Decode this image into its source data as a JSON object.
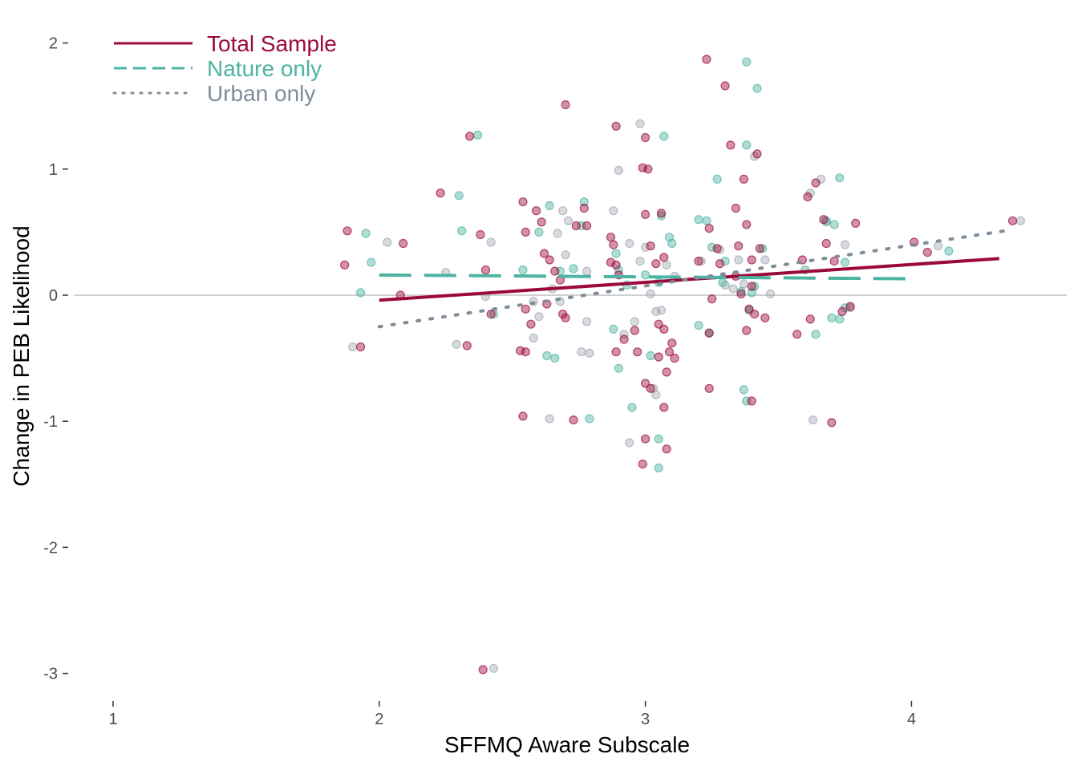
{
  "chart_data": {
    "type": "scatter",
    "xlabel": "SFFMQ Aware Subscale",
    "ylabel": "Change in PEB Likelihood",
    "xlim": [
      0.9,
      4.6
    ],
    "ylim": [
      -3.2,
      2.1
    ],
    "x_ticks": [
      1,
      2,
      3,
      4
    ],
    "y_ticks": [
      2,
      1,
      0,
      -1,
      -2,
      -3
    ],
    "x_tick_labels": [
      "1",
      "2",
      "3",
      "4"
    ],
    "y_tick_labels": [
      "2",
      "1",
      "0",
      "-1",
      "-2",
      "-3"
    ],
    "reference_line_y": 0,
    "grid": false,
    "legend_position": "top-left",
    "colors": {
      "total": "#9b0a3b",
      "nature": "#4db3a2",
      "urban": "#7f8c99",
      "reference": "#d0d0d0"
    },
    "legend": [
      {
        "label": "Total Sample",
        "style": "solid",
        "color": "#9b0a3b"
      },
      {
        "label": "Nature only",
        "style": "dashed",
        "color": "#4db3a2"
      },
      {
        "label": "Urban only",
        "style": "dotted",
        "color": "#7f8c99"
      }
    ],
    "series": [
      {
        "name": "Total Sample",
        "style": "solid",
        "color": "#9b0a3b",
        "fit": {
          "x": [
            2.0,
            4.33
          ],
          "y": [
            -0.04,
            0.29
          ]
        },
        "points": [
          [
            1.88,
            0.51
          ],
          [
            1.87,
            0.24
          ],
          [
            1.93,
            -0.41
          ],
          [
            2.09,
            0.41
          ],
          [
            2.08,
            0.0
          ],
          [
            2.23,
            0.81
          ],
          [
            2.34,
            1.26
          ],
          [
            2.38,
            0.48
          ],
          [
            2.4,
            0.2
          ],
          [
            2.42,
            -0.15
          ],
          [
            2.33,
            -0.4
          ],
          [
            2.39,
            -2.97
          ],
          [
            2.54,
            0.74
          ],
          [
            2.59,
            0.67
          ],
          [
            2.55,
            0.5
          ],
          [
            2.61,
            0.58
          ],
          [
            2.62,
            0.33
          ],
          [
            2.64,
            0.28
          ],
          [
            2.66,
            0.19
          ],
          [
            2.68,
            0.12
          ],
          [
            2.55,
            -0.11
          ],
          [
            2.57,
            -0.23
          ],
          [
            2.53,
            -0.44
          ],
          [
            2.55,
            -0.45
          ],
          [
            2.63,
            -0.07
          ],
          [
            2.69,
            -0.15
          ],
          [
            2.7,
            -0.18
          ],
          [
            2.74,
            0.55
          ],
          [
            2.77,
            0.69
          ],
          [
            2.78,
            0.55
          ],
          [
            2.7,
            1.51
          ],
          [
            2.73,
            -0.99
          ],
          [
            2.54,
            -0.96
          ],
          [
            2.89,
            1.34
          ],
          [
            2.87,
            0.46
          ],
          [
            2.88,
            0.4
          ],
          [
            2.87,
            0.26
          ],
          [
            2.89,
            0.24
          ],
          [
            2.9,
            0.16
          ],
          [
            2.92,
            -0.35
          ],
          [
            2.89,
            -0.45
          ],
          [
            2.96,
            -0.28
          ],
          [
            2.97,
            -0.45
          ],
          [
            2.99,
            1.01
          ],
          [
            3.01,
            1.0
          ],
          [
            3.0,
            1.25
          ],
          [
            3.0,
            0.64
          ],
          [
            3.02,
            0.39
          ],
          [
            3.06,
            0.65
          ],
          [
            3.07,
            0.3
          ],
          [
            3.04,
            0.25
          ],
          [
            3.05,
            -0.23
          ],
          [
            3.07,
            -0.27
          ],
          [
            3.1,
            -0.38
          ],
          [
            3.05,
            -0.49
          ],
          [
            3.09,
            -0.45
          ],
          [
            3.11,
            -0.5
          ],
          [
            3.02,
            -0.74
          ],
          [
            3.0,
            -0.7
          ],
          [
            3.08,
            -0.61
          ],
          [
            3.07,
            -0.89
          ],
          [
            3.0,
            -1.14
          ],
          [
            3.08,
            -1.22
          ],
          [
            2.99,
            -1.34
          ],
          [
            3.23,
            1.87
          ],
          [
            3.3,
            1.66
          ],
          [
            3.32,
            1.19
          ],
          [
            3.42,
            1.12
          ],
          [
            3.37,
            0.92
          ],
          [
            3.34,
            0.69
          ],
          [
            3.38,
            0.56
          ],
          [
            3.24,
            0.53
          ],
          [
            3.2,
            0.27
          ],
          [
            3.27,
            0.37
          ],
          [
            3.28,
            0.25
          ],
          [
            3.35,
            0.39
          ],
          [
            3.4,
            0.28
          ],
          [
            3.34,
            0.15
          ],
          [
            3.36,
            0.01
          ],
          [
            3.4,
            0.07
          ],
          [
            3.43,
            0.37
          ],
          [
            3.39,
            -0.11
          ],
          [
            3.41,
            -0.15
          ],
          [
            3.38,
            -0.28
          ],
          [
            3.45,
            -0.18
          ],
          [
            3.24,
            -0.3
          ],
          [
            3.24,
            -0.74
          ],
          [
            3.4,
            -0.84
          ],
          [
            3.25,
            -0.03
          ],
          [
            3.61,
            0.78
          ],
          [
            3.64,
            0.89
          ],
          [
            3.67,
            0.6
          ],
          [
            3.68,
            0.41
          ],
          [
            3.59,
            0.28
          ],
          [
            3.57,
            -0.31
          ],
          [
            3.62,
            -0.19
          ],
          [
            3.71,
            0.27
          ],
          [
            3.74,
            -0.13
          ],
          [
            3.77,
            -0.09
          ],
          [
            3.79,
            0.57
          ],
          [
            3.7,
            -1.01
          ],
          [
            4.01,
            0.42
          ],
          [
            4.06,
            0.34
          ],
          [
            4.38,
            0.59
          ]
        ]
      },
      {
        "name": "Nature only",
        "style": "dashed",
        "color": "#4db3a2",
        "fit": {
          "x": [
            2.0,
            4.0
          ],
          "y": [
            0.16,
            0.13
          ]
        },
        "points": [
          [
            1.95,
            0.49
          ],
          [
            1.97,
            0.26
          ],
          [
            1.93,
            0.02
          ],
          [
            2.3,
            0.79
          ],
          [
            2.31,
            0.51
          ],
          [
            2.37,
            1.27
          ],
          [
            2.43,
            -0.15
          ],
          [
            2.54,
            0.2
          ],
          [
            2.6,
            0.5
          ],
          [
            2.64,
            0.71
          ],
          [
            2.68,
            0.19
          ],
          [
            2.63,
            -0.48
          ],
          [
            2.66,
            -0.5
          ],
          [
            2.73,
            0.21
          ],
          [
            2.77,
            0.74
          ],
          [
            2.76,
            0.55
          ],
          [
            2.79,
            -0.98
          ],
          [
            2.89,
            0.33
          ],
          [
            2.9,
            0.2
          ],
          [
            2.88,
            -0.27
          ],
          [
            2.9,
            -0.58
          ],
          [
            2.93,
            0.08
          ],
          [
            2.95,
            -0.89
          ],
          [
            3.0,
            0.16
          ],
          [
            3.02,
            -0.48
          ],
          [
            3.06,
            0.63
          ],
          [
            3.07,
            1.26
          ],
          [
            3.05,
            0.1
          ],
          [
            3.09,
            0.46
          ],
          [
            3.1,
            0.41
          ],
          [
            3.05,
            -1.14
          ],
          [
            3.05,
            -1.37
          ],
          [
            3.2,
            0.6
          ],
          [
            3.23,
            0.59
          ],
          [
            3.27,
            0.92
          ],
          [
            3.24,
            -0.3
          ],
          [
            3.2,
            -0.24
          ],
          [
            3.25,
            0.38
          ],
          [
            3.3,
            0.27
          ],
          [
            3.29,
            0.1
          ],
          [
            3.36,
            0.03
          ],
          [
            3.38,
            1.85
          ],
          [
            3.42,
            1.64
          ],
          [
            3.38,
            1.19
          ],
          [
            3.37,
            -0.75
          ],
          [
            3.38,
            -0.84
          ],
          [
            3.44,
            0.37
          ],
          [
            3.41,
            0.07
          ],
          [
            3.4,
            0.02
          ],
          [
            3.39,
            -0.12
          ],
          [
            3.6,
            0.2
          ],
          [
            3.68,
            0.59
          ],
          [
            3.71,
            0.56
          ],
          [
            3.73,
            0.93
          ],
          [
            3.64,
            -0.31
          ],
          [
            3.75,
            0.26
          ],
          [
            3.75,
            -0.1
          ],
          [
            3.73,
            -0.19
          ],
          [
            3.7,
            -0.18
          ],
          [
            4.14,
            0.35
          ]
        ]
      },
      {
        "name": "Urban only",
        "style": "dotted",
        "color": "#7f8c99",
        "fit": {
          "x": [
            2.0,
            4.35
          ],
          "y": [
            -0.25,
            0.51
          ]
        },
        "points": [
          [
            1.9,
            -0.41
          ],
          [
            2.03,
            0.42
          ],
          [
            2.25,
            0.18
          ],
          [
            2.29,
            -0.39
          ],
          [
            2.4,
            -0.01
          ],
          [
            2.42,
            0.42
          ],
          [
            2.43,
            -2.96
          ],
          [
            2.58,
            -0.05
          ],
          [
            2.6,
            -0.17
          ],
          [
            2.58,
            -0.34
          ],
          [
            2.67,
            0.49
          ],
          [
            2.69,
            0.67
          ],
          [
            2.71,
            0.59
          ],
          [
            2.7,
            0.32
          ],
          [
            2.65,
            0.05
          ],
          [
            2.68,
            -0.05
          ],
          [
            2.76,
            -0.45
          ],
          [
            2.79,
            -0.46
          ],
          [
            2.78,
            -0.21
          ],
          [
            2.64,
            -0.98
          ],
          [
            2.78,
            0.19
          ],
          [
            2.9,
            0.99
          ],
          [
            2.88,
            0.67
          ],
          [
            2.92,
            -0.31
          ],
          [
            2.94,
            0.41
          ],
          [
            2.96,
            -0.21
          ],
          [
            2.98,
            1.36
          ],
          [
            2.98,
            0.27
          ],
          [
            3.0,
            0.38
          ],
          [
            3.02,
            0.01
          ],
          [
            3.04,
            -0.13
          ],
          [
            3.06,
            -0.12
          ],
          [
            3.08,
            0.24
          ],
          [
            3.11,
            0.15
          ],
          [
            2.94,
            -1.17
          ],
          [
            3.03,
            -0.74
          ],
          [
            3.04,
            -0.79
          ],
          [
            3.21,
            0.27
          ],
          [
            3.28,
            0.36
          ],
          [
            3.3,
            0.08
          ],
          [
            3.33,
            0.05
          ],
          [
            3.37,
            0.09
          ],
          [
            3.41,
            1.1
          ],
          [
            3.35,
            0.28
          ],
          [
            3.45,
            0.28
          ],
          [
            3.47,
            0.01
          ],
          [
            3.62,
            0.81
          ],
          [
            3.66,
            0.92
          ],
          [
            3.68,
            0.58
          ],
          [
            3.63,
            -0.99
          ],
          [
            3.75,
            0.4
          ],
          [
            3.77,
            -0.1
          ],
          [
            4.1,
            0.39
          ],
          [
            4.41,
            0.59
          ]
        ]
      }
    ]
  }
}
